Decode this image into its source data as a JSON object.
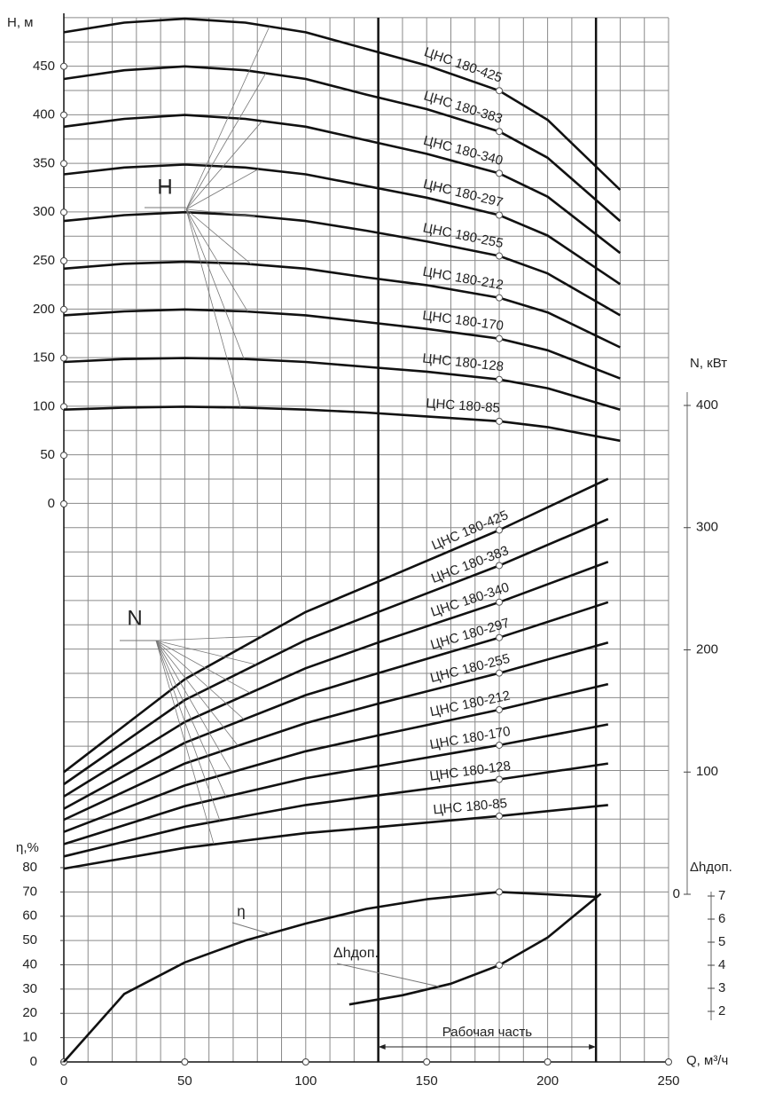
{
  "chart_data": [
    {
      "type": "line",
      "y_label": "H, м",
      "annotation": "H",
      "color": "#111",
      "ylim": [
        0,
        500
      ],
      "yticks": [
        0,
        50,
        100,
        150,
        200,
        250,
        300,
        350,
        400,
        450
      ],
      "x": [
        0,
        25,
        50,
        75,
        100,
        125,
        150,
        180,
        200,
        230
      ],
      "series": [
        {
          "name": "ЦНС 180-425",
          "values": [
            485,
            495,
            499,
            495,
            485,
            468,
            451,
            425,
            395,
            323
          ]
        },
        {
          "name": "ЦНС 180-383",
          "values": [
            437,
            446,
            450,
            446,
            437,
            421,
            406,
            383,
            356,
            291
          ]
        },
        {
          "name": "ЦНС 180-340",
          "values": [
            388,
            396,
            400,
            396,
            388,
            374,
            360,
            340,
            316,
            258
          ]
        },
        {
          "name": "ЦНС 180-297",
          "values": [
            339,
            346,
            349,
            346,
            339,
            327,
            315,
            297,
            276,
            226
          ]
        },
        {
          "name": "ЦНС 180-255",
          "values": [
            291,
            297,
            300,
            297,
            291,
            281,
            270,
            255,
            237,
            194
          ]
        },
        {
          "name": "ЦНС 180-212",
          "values": [
            242,
            247,
            249,
            247,
            242,
            233,
            225,
            212,
            197,
            161
          ]
        },
        {
          "name": "ЦНС 180-170",
          "values": [
            194,
            198,
            200,
            198,
            194,
            187,
            180,
            170,
            158,
            129
          ]
        },
        {
          "name": "ЦНС 180-128",
          "values": [
            146,
            149,
            150,
            149,
            146,
            141,
            136,
            128,
            119,
            97
          ]
        },
        {
          "name": "ЦНС 180-85",
          "values": [
            97,
            99,
            100,
            99,
            97,
            94,
            90,
            85,
            79,
            65
          ]
        }
      ]
    },
    {
      "type": "line",
      "y_label": "N, кВт",
      "annotation": "N",
      "color": "#111",
      "ylim": [
        0,
        400
      ],
      "yticks": [
        0,
        100,
        200,
        300,
        400
      ],
      "x": [
        0,
        50,
        100,
        130,
        180,
        225
      ],
      "series": [
        {
          "name": "ЦНС 180-425",
          "values": [
            100,
            176,
            231,
            256,
            298,
            340
          ]
        },
        {
          "name": "ЦНС 180-383",
          "values": [
            90,
            159,
            208,
            231,
            269,
            307
          ]
        },
        {
          "name": "ЦНС 180-340",
          "values": [
            80,
            141,
            185,
            206,
            239,
            272
          ]
        },
        {
          "name": "ЦНС 180-297",
          "values": [
            70,
            124,
            163,
            181,
            210,
            239
          ]
        },
        {
          "name": "ЦНС 180-255",
          "values": [
            61,
            107,
            140,
            156,
            181,
            206
          ]
        },
        {
          "name": "ЦНС 180-212",
          "values": [
            51,
            89,
            117,
            130,
            151,
            172
          ]
        },
        {
          "name": "ЦНС 180-170",
          "values": [
            41,
            72,
            95,
            105,
            122,
            139
          ]
        },
        {
          "name": "ЦНС 180-128",
          "values": [
            31,
            55,
            73,
            81,
            94,
            107
          ]
        },
        {
          "name": "ЦНС 180-85",
          "values": [
            21,
            38,
            50,
            55,
            64,
            73
          ]
        }
      ]
    },
    {
      "type": "line",
      "y_label": "η,%",
      "annotation": "η",
      "x_label": "Q, м³/ч",
      "color": "#111",
      "xlim": [
        0,
        250
      ],
      "xticks": [
        0,
        50,
        100,
        150,
        200,
        250
      ],
      "ylim": [
        0,
        80
      ],
      "yticks": [
        0,
        10,
        20,
        30,
        40,
        50,
        60,
        70,
        80
      ],
      "x": [
        0,
        25,
        50,
        75,
        100,
        125,
        150,
        180,
        200,
        220
      ],
      "values": [
        0,
        28,
        41,
        50,
        57,
        63,
        67,
        70,
        69,
        68
      ],
      "working_zone": {
        "label": "Рабочая часть",
        "q": [
          130,
          220
        ]
      }
    },
    {
      "type": "line",
      "y_label": "Δhдоп.",
      "annotation": "Δhдоп.",
      "color": "#111",
      "ylim": [
        2,
        7
      ],
      "yticks": [
        2,
        3,
        4,
        5,
        6,
        7
      ],
      "x": [
        118,
        140,
        160,
        180,
        200,
        222
      ],
      "values": [
        2.3,
        2.7,
        3.2,
        4.0,
        5.2,
        7.1
      ]
    }
  ]
}
